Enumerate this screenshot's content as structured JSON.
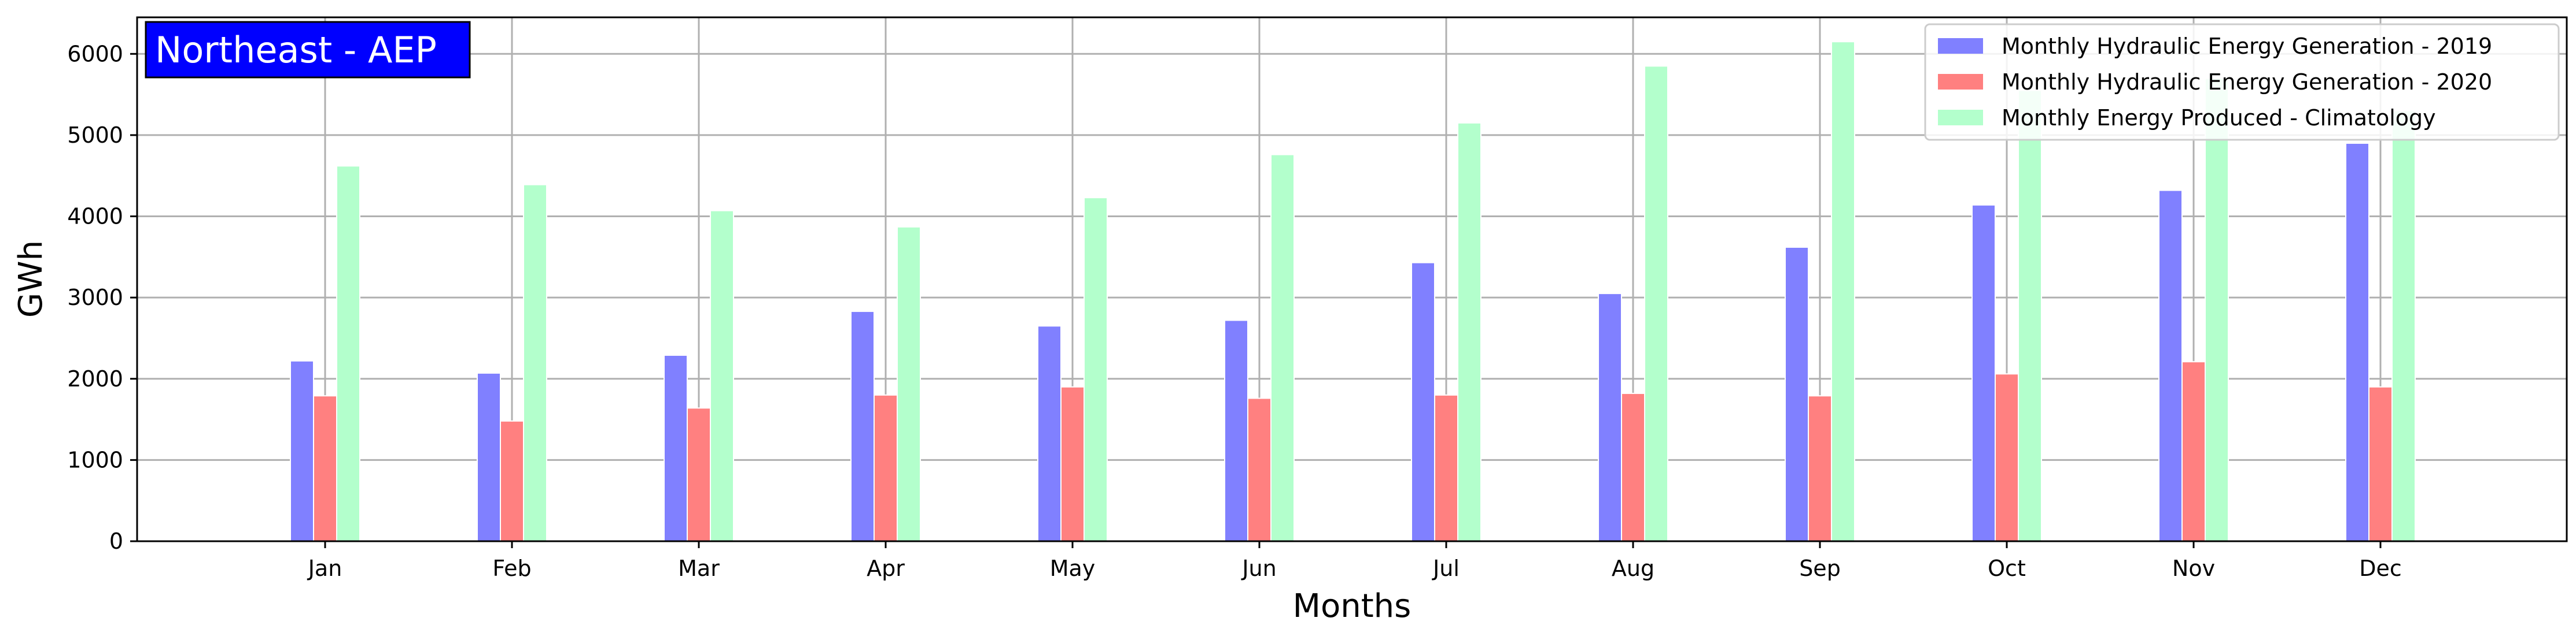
{
  "chart_data": {
    "type": "bar",
    "region_label": "Northeast - AEP",
    "xlabel": "Months",
    "ylabel": "GWh",
    "ylim": [
      0,
      6450
    ],
    "yticks": [
      0,
      1000,
      2000,
      3000,
      4000,
      5000,
      6000
    ],
    "grid": true,
    "legend_position": "top-right",
    "categories": [
      "Jan",
      "Feb",
      "Mar",
      "Apr",
      "May",
      "Jun",
      "Jul",
      "Aug",
      "Sep",
      "Oct",
      "Nov",
      "Dec"
    ],
    "series": [
      {
        "name": "Monthly Hydraulic Energy Generation - 2019",
        "color": "#8080ff",
        "values": [
          2220,
          2070,
          2290,
          2830,
          2650,
          2720,
          3430,
          3050,
          3620,
          4140,
          4320,
          4900
        ]
      },
      {
        "name": "Monthly Hydraulic Energy Generation - 2020",
        "color": "#ff8080",
        "values": [
          1790,
          1480,
          1640,
          1800,
          1900,
          1760,
          1800,
          1820,
          1790,
          2060,
          2210,
          1900
        ]
      },
      {
        "name": "Monthly Energy Produced - Climatology",
        "color": "#b3ffcc",
        "values": [
          4620,
          4390,
          4070,
          3870,
          4230,
          4760,
          5150,
          5850,
          6150,
          5550,
          5700,
          5300
        ]
      }
    ]
  }
}
